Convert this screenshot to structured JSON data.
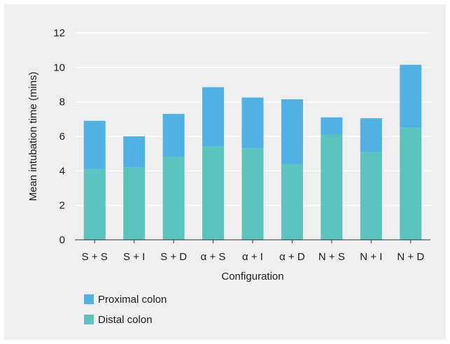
{
  "chart_data": {
    "type": "bar",
    "stacked": true,
    "xlabel": "Configuration",
    "ylabel": "Mean intubation time (mins)",
    "ylim": [
      0,
      12
    ],
    "yticks": [
      0,
      2,
      4,
      6,
      8,
      10,
      12
    ],
    "grid": true,
    "legend_position": "bottom-left",
    "categories": [
      "S + S",
      "S + I",
      "S + D",
      "α + S",
      "α + I",
      "α + D",
      "N + S",
      "N + I",
      "N + D"
    ],
    "series": [
      {
        "name": "Distal colon",
        "color": "#5bc4be",
        "values": [
          4.1,
          4.2,
          4.8,
          5.4,
          5.3,
          4.4,
          6.1,
          5.1,
          6.5
        ]
      },
      {
        "name": "Proximal colon",
        "color": "#4fb1e4",
        "values": [
          2.8,
          1.8,
          2.5,
          3.45,
          2.95,
          3.75,
          1.0,
          1.95,
          3.65
        ]
      }
    ],
    "legend": [
      "Proximal colon",
      "Distal colon"
    ]
  }
}
